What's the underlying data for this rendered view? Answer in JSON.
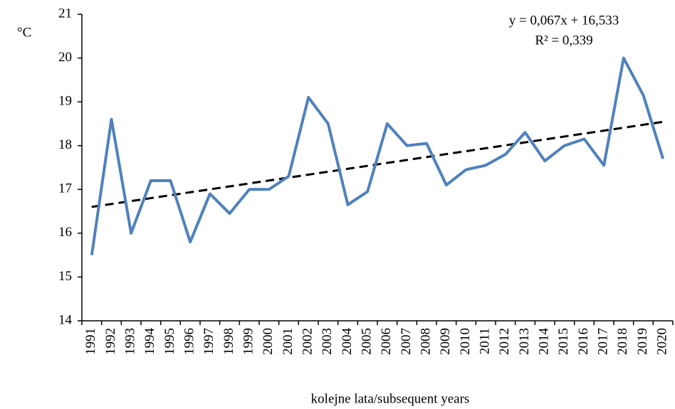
{
  "chart_data": {
    "type": "line",
    "y_unit": "°C",
    "x_label": "kolejne lata/subsequent years",
    "categories": [
      "1991",
      "1992",
      "1993",
      "1994",
      "1995",
      "1996",
      "1997",
      "1998",
      "1999",
      "2000",
      "2001",
      "2002",
      "2003",
      "2004",
      "2005",
      "2006",
      "2007",
      "2008",
      "2009",
      "2010",
      "2011",
      "2012",
      "2013",
      "2014",
      "2015",
      "2016",
      "2017",
      "2018",
      "2019",
      "2020"
    ],
    "series": [
      {
        "color": "#4f81bd",
        "values": [
          15.5,
          18.6,
          16.0,
          17.2,
          17.2,
          15.8,
          16.9,
          16.45,
          17.0,
          17.0,
          17.3,
          19.1,
          18.5,
          16.65,
          16.95,
          18.5,
          18.0,
          18.05,
          17.1,
          17.45,
          17.55,
          17.8,
          18.3,
          17.65,
          18.0,
          18.15,
          17.55,
          20.0,
          19.15,
          17.7
        ]
      }
    ],
    "trend": {
      "slope": 0.067,
      "intercept": 16.533,
      "color": "#000000",
      "label": "y = 0,067x + 16,533",
      "r2_label": "R² = 0,339"
    },
    "ylim": [
      14,
      21
    ],
    "yticks": [
      14,
      15,
      16,
      17,
      18,
      19,
      20,
      21
    ],
    "grid": false
  }
}
